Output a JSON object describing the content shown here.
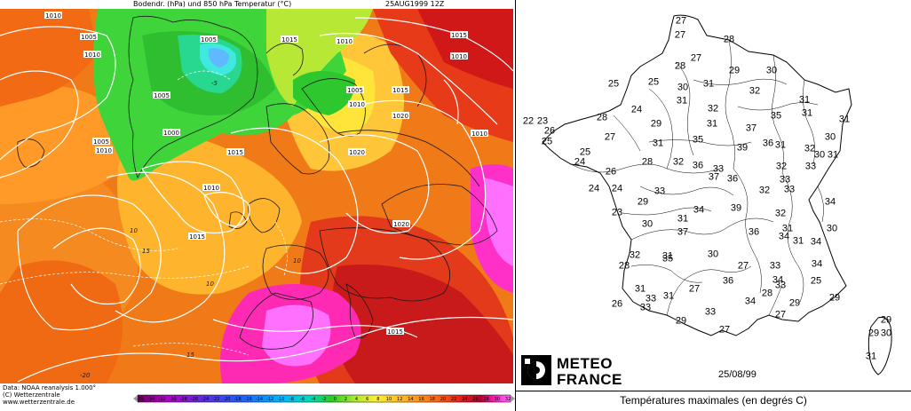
{
  "left_map": {
    "header": {
      "title": "Bodendr. (hPa) und 850 hPa Temperatur (°C)",
      "date": "25AUG1999 12Z"
    },
    "footer": {
      "data_source": "Data: NOAA reanalysis 1.000°",
      "copyright": "(C) Wetterzentrale",
      "url": "www.wetterzentrale.de"
    },
    "colorbar_ticks": [
      "-36",
      "-34",
      "-32",
      "-30",
      "-28",
      "-26",
      "-24",
      "-22",
      "-20",
      "-18",
      "-16",
      "-14",
      "-12",
      "-10",
      "-8",
      "-6",
      "-4",
      "-2",
      "0",
      "2",
      "4",
      "6",
      "8",
      "10",
      "12",
      "14",
      "16",
      "18",
      "20",
      "22",
      "24",
      "26",
      "28",
      "30",
      "32"
    ],
    "isobar_labels": [
      "1010",
      "1005",
      "1010",
      "1005",
      "1015",
      "1010",
      "1005",
      "1000",
      "1005",
      "1010",
      "1015",
      "1010",
      "1010",
      "1015",
      "1005",
      "1010",
      "1015",
      "1020",
      "1010",
      "1015",
      "1020",
      "1020",
      "1015"
    ],
    "isotherm_labels": [
      "10",
      "10",
      "15",
      "10",
      "15",
      "-5",
      "-20"
    ]
  },
  "france_map": {
    "date": "25/08/99",
    "caption": "Températures maximales (en degrés C)",
    "brand_line1": "METEO",
    "brand_line2": "FRANCE",
    "temperatures": [
      "27",
      "27",
      "28",
      "27",
      "28",
      "29",
      "30",
      "25",
      "25",
      "30",
      "31",
      "32",
      "31",
      "31",
      "31",
      "24",
      "28",
      "32",
      "35",
      "31",
      "22",
      "23",
      "29",
      "31",
      "37",
      "30",
      "26",
      "27",
      "25",
      "35",
      "31",
      "36",
      "31",
      "32",
      "30",
      "31",
      "25",
      "39",
      "24",
      "28",
      "32",
      "33",
      "26",
      "36",
      "33",
      "32",
      "37",
      "36",
      "33",
      "24",
      "24",
      "33",
      "32",
      "33",
      "23",
      "29",
      "34",
      "39",
      "32",
      "34",
      "30",
      "31",
      "37",
      "36",
      "31",
      "34",
      "31",
      "30",
      "34",
      "28",
      "32",
      "31",
      "35",
      "30",
      "27",
      "33",
      "34",
      "33",
      "29",
      "31",
      "31",
      "33",
      "27",
      "36",
      "34",
      "25",
      "26",
      "33",
      "28",
      "34",
      "29",
      "27",
      "33",
      "29",
      "27",
      "29",
      "30",
      "29",
      "31"
    ]
  }
}
